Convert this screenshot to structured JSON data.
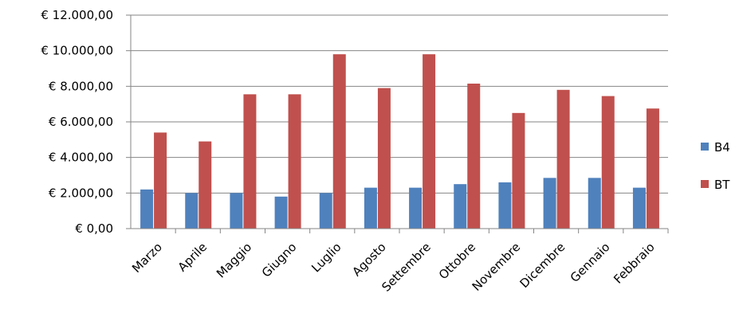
{
  "chart_data": {
    "type": "bar",
    "title": "",
    "xlabel": "",
    "ylabel": "",
    "ylim": [
      0,
      12000
    ],
    "y_ticks": [
      0,
      2000,
      4000,
      6000,
      8000,
      10000,
      12000
    ],
    "y_tick_labels": [
      "€ 0,00",
      "€ 2.000,00",
      "€ 4.000,00",
      "€ 6.000,00",
      "€ 8.000,00",
      "€ 10.000,00",
      "€ 12.000,00"
    ],
    "grid": true,
    "legend_position": "right",
    "categories": [
      "Marzo",
      "Aprile",
      "Maggio",
      "Giugno",
      "Luglio",
      "Agosto",
      "Settembre",
      "Ottobre",
      "Novembre",
      "Dicembre",
      "Gennaio",
      "Febbraio"
    ],
    "series": [
      {
        "name": "B4",
        "color": "#4f81bd",
        "values": [
          2200,
          2000,
          2000,
          1800,
          2000,
          2300,
          2300,
          2500,
          2600,
          2850,
          2850,
          2300
        ]
      },
      {
        "name": "BT",
        "color": "#c0504d",
        "values": [
          5400,
          4900,
          7550,
          7550,
          9800,
          7900,
          9800,
          8150,
          6500,
          7800,
          7450,
          6750
        ]
      }
    ]
  }
}
